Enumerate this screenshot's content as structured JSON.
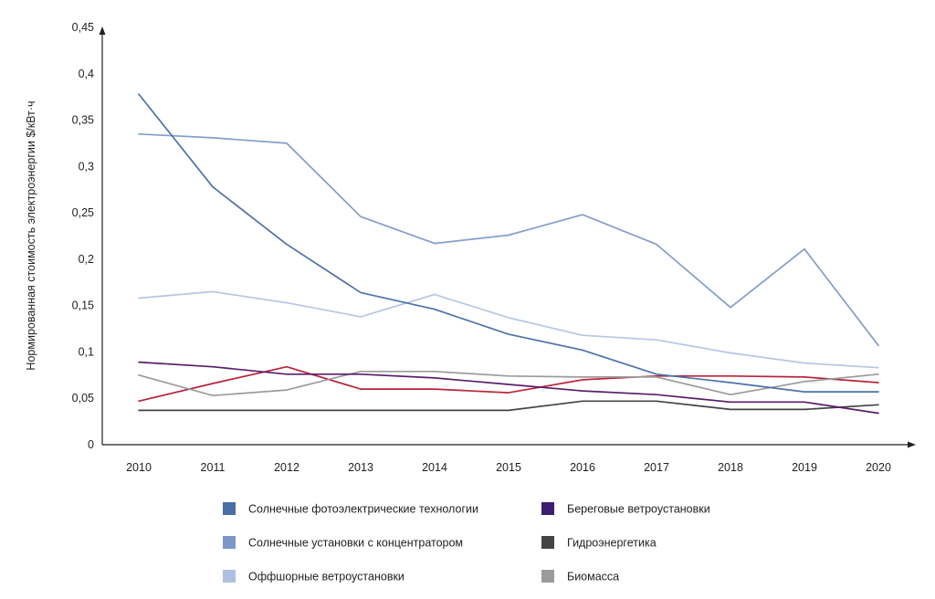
{
  "chart_data": {
    "type": "line",
    "title": "",
    "xlabel": "",
    "ylabel": "Нормированная стоимость электроэнергии $/кВт·ч",
    "x": [
      "2010",
      "2011",
      "2012",
      "2013",
      "2014",
      "2015",
      "2016",
      "2017",
      "2018",
      "2019",
      "2020"
    ],
    "ylim": [
      0,
      0.45
    ],
    "yticks": [
      "0",
      "0,05",
      "0,1",
      "0,15",
      "0,2",
      "0,25",
      "0,3",
      "0,35",
      "0,4",
      "0,45"
    ],
    "grid": false,
    "legend_position": "bottom",
    "series": [
      {
        "name": "Солнечные фотоэлектрические технологии",
        "color": "#4d72a8",
        "legend_color": "#4a6fa5",
        "values": [
          0.378,
          0.278,
          0.216,
          0.164,
          0.146,
          0.119,
          0.102,
          0.076,
          0.067,
          0.057,
          0.057
        ]
      },
      {
        "name": "Солнечные установки с концентратором",
        "color": "#849dcc",
        "legend_color": "#7d96c8",
        "values": [
          0.335,
          0.331,
          0.325,
          0.246,
          0.217,
          0.226,
          0.248,
          0.216,
          0.148,
          0.211,
          0.107
        ]
      },
      {
        "name": "Оффшорные ветроустановки",
        "color": "#b6c6e3",
        "legend_color": "#adc0e2",
        "values": [
          0.158,
          0.165,
          0.153,
          0.138,
          0.162,
          0.137,
          0.118,
          0.113,
          0.099,
          0.088,
          0.083
        ]
      },
      {
        "name": "Береговые ветроустановки",
        "color": "#5a1e6a",
        "legend_color": "#3d1e6e",
        "values": [
          0.089,
          0.084,
          0.076,
          0.076,
          0.072,
          0.065,
          0.058,
          0.054,
          0.046,
          0.046,
          0.034
        ]
      },
      {
        "name": "Гидроэнергетика",
        "color": "#444444",
        "legend_color": "#444444",
        "values": [
          0.037,
          0.037,
          0.037,
          0.037,
          0.037,
          0.037,
          0.047,
          0.047,
          0.038,
          0.038,
          0.043
        ]
      },
      {
        "name": "Биомасса",
        "color": "#9b9b9b",
        "legend_color": "#9b9b9b",
        "values": [
          0.075,
          0.053,
          0.059,
          0.079,
          0.079,
          0.074,
          0.073,
          0.073,
          0.054,
          0.068,
          0.076
        ]
      },
      {
        "name": "",
        "color": "#b8243c",
        "legend_color": "",
        "values": [
          0.047,
          0.066,
          0.084,
          0.06,
          0.06,
          0.056,
          0.07,
          0.074,
          0.074,
          0.073,
          0.067
        ]
      }
    ]
  }
}
